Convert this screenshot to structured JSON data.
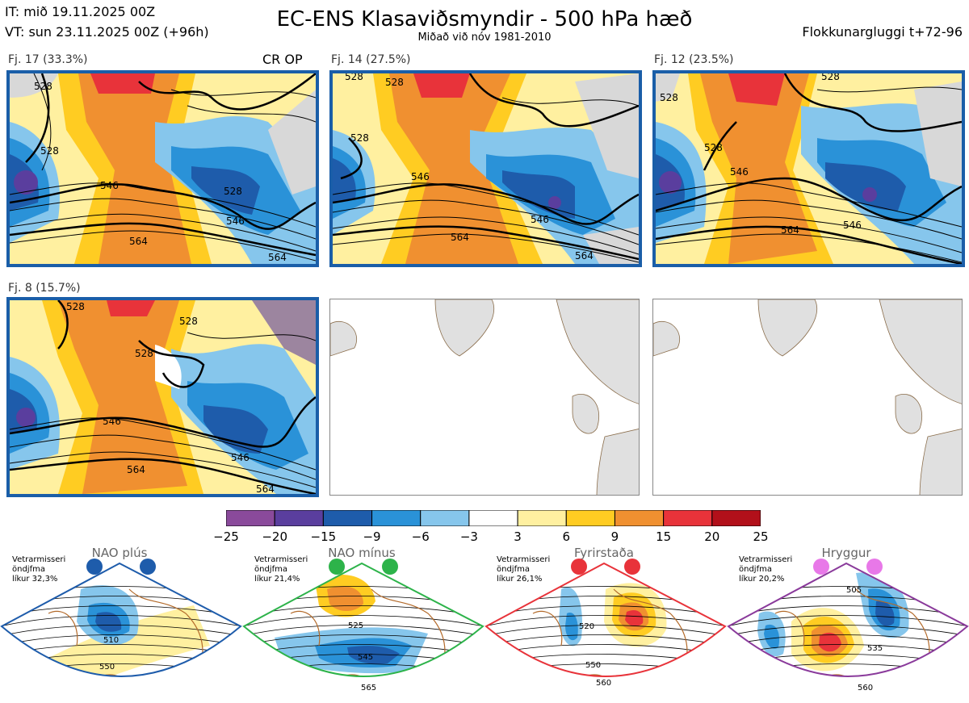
{
  "header": {
    "it_line": "IT: mið 19.11.2025 00Z",
    "vt_line": "VT: sun 23.11.2025 00Z  (+96h)",
    "title": "EC-ENS Klasaviðsmyndir - 500 hPa hæð",
    "subtitle": "Miðað við nóv 1981-2010",
    "window": "Flokkunargluggi t+72-96"
  },
  "panels": [
    {
      "label": "Fj. 17 (33.3%)",
      "badge": "CR OP",
      "contours": [
        "528",
        "528",
        "546",
        "546",
        "564",
        "564",
        "528"
      ]
    },
    {
      "label": "Fj. 14 (27.5%)",
      "contours": [
        "528",
        "528",
        "546",
        "546",
        "564",
        "564",
        "528"
      ]
    },
    {
      "label": "Fj. 12 (23.5%)",
      "contours": [
        "528",
        "528",
        "546",
        "546",
        "564",
        "528"
      ]
    },
    {
      "label": "Fj. 8 (15.7%)",
      "contours": [
        "528",
        "528",
        "546",
        "546",
        "564",
        "564",
        "528"
      ]
    }
  ],
  "colorbar": {
    "ticks": [
      "−25",
      "−20",
      "−15",
      "−9",
      "−6",
      "−3",
      "3",
      "6",
      "9",
      "15",
      "20",
      "25"
    ],
    "colors": [
      "#8a4a9b",
      "#5a3e9e",
      "#1e5cab",
      "#2a92d8",
      "#86c6ec",
      "#ffffff",
      "#fff0a0",
      "#ffcc22",
      "#f09030",
      "#e8333a",
      "#b2101a"
    ]
  },
  "regimes": [
    {
      "title": "NAO plús",
      "side": [
        "Vetrarmisseri",
        "öndjfma",
        "líkur 32,3%"
      ],
      "dot_color": "#1e5cab",
      "border_color": "#1e5cab",
      "labels": [
        "510",
        "550"
      ]
    },
    {
      "title": "NAO mínus",
      "side": [
        "Vetrarmisseri",
        "öndjfma",
        "líkur 21,4%"
      ],
      "dot_color": "#2db34a",
      "border_color": "#2db34a",
      "labels": [
        "525",
        "545",
        "565"
      ]
    },
    {
      "title": "Fyrirstaða",
      "side": [
        "Vetrarmisseri",
        "öndjfma",
        "líkur 26,1%"
      ],
      "dot_color": "#e8333a",
      "border_color": "#e8333a",
      "labels": [
        "520",
        "550",
        "560"
      ]
    },
    {
      "title": "Hryggur",
      "side": [
        "Vetrarmisseri",
        "öndjfma",
        "líkur 20,2%"
      ],
      "dot_color": "#e878e8",
      "border_color": "#8a3a9b",
      "labels": [
        "505",
        "535",
        "560"
      ]
    }
  ]
}
